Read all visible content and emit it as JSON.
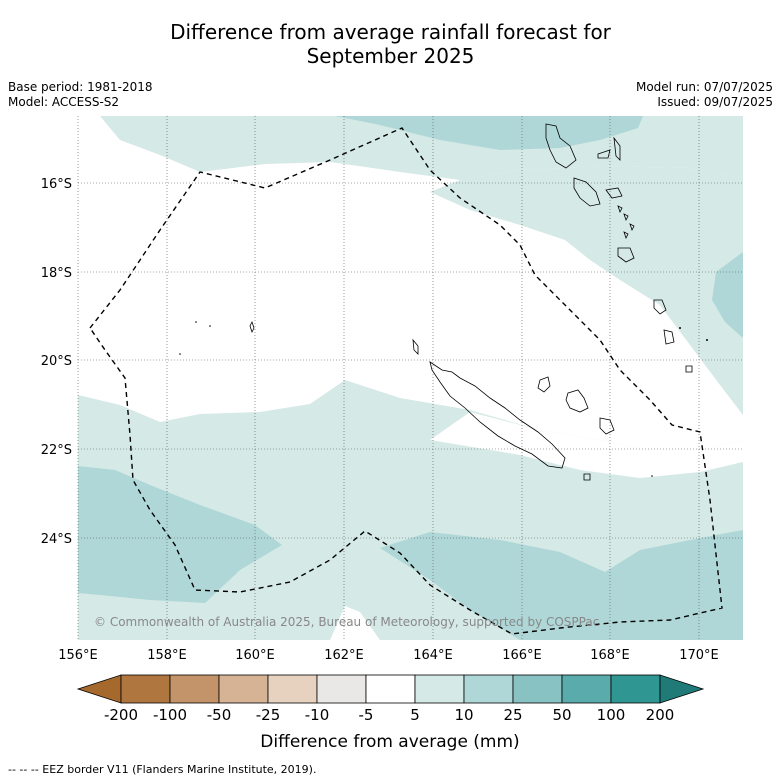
{
  "title_line1": "Difference from average rainfall forecast for",
  "title_line2": "September 2025",
  "left_meta": [
    "Base period: 1981-2018",
    "Model: ACCESS-S2"
  ],
  "right_meta": [
    "Model run: 07/07/2025",
    "Issued: 09/07/2025"
  ],
  "copyright": "© Commonwealth of Australia 2025, Bureau of Meteorology, supported by COSPPac",
  "lat_labels": [
    "16°S",
    "18°S",
    "20°S",
    "22°S",
    "24°S"
  ],
  "lon_labels": [
    "156°E",
    "158°E",
    "160°E",
    "162°E",
    "164°E",
    "166°E",
    "168°E",
    "170°E"
  ],
  "colorbar": {
    "title": "Difference from average (mm)",
    "ticks": [
      "-200",
      "-100",
      "-50",
      "-25",
      "-10",
      "-5",
      "5",
      "10",
      "25",
      "50",
      "100",
      "200"
    ],
    "colors": [
      "#a5692e",
      "#b07640",
      "#c39469",
      "#d6b395",
      "#e7d2bf",
      "#e9e8e6",
      "#ffffff",
      "#d5e9e7",
      "#afd7d7",
      "#88c2c2",
      "#5aabab",
      "#2f9692",
      "#1f7a78"
    ]
  },
  "footer": "--  --  -- EEZ border V11 (Flanders Marine Institute, 2019).",
  "zone_colors": {
    "light": "#d5e9e7",
    "mid": "#afd7d7"
  }
}
